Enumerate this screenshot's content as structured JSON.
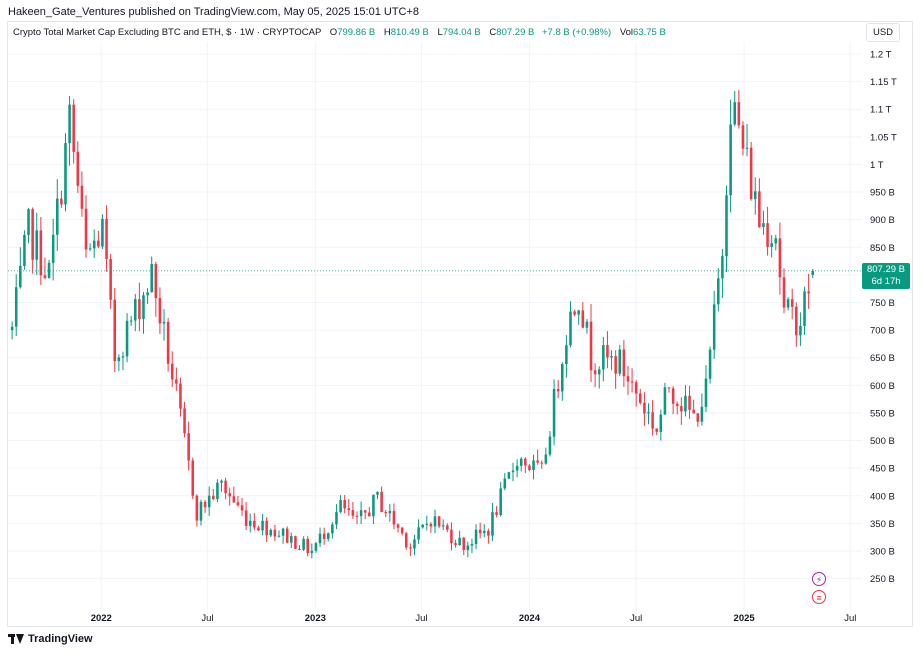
{
  "publisher_line": "Hakeen_Gate_Ventures published on TradingView.com, May 05, 2025 15:01 UTC+8",
  "legend": {
    "symbol": "Crypto Total Market Cap Excluding BTC and ETH, $ · 1W · CRYPTOCAP",
    "open_label": "O",
    "open": "799.86 B",
    "high_label": "H",
    "high": "810.49 B",
    "low_label": "L",
    "low": "794.04 B",
    "close_label": "C",
    "close": "807.29 B",
    "change": "+7.8 B (+0.98%)",
    "vol_label": "Vol",
    "vol": "63.75 B"
  },
  "currency": "USD",
  "price_badge": {
    "price": "807.29 B",
    "countdown": "6d 17h"
  },
  "brand": "TradingView",
  "icons": {
    "event_1": "lightning-icon",
    "event_2": "us-flag-icon"
  },
  "colors": {
    "up": "#089981",
    "down": "#f23645",
    "grid": "#f0f3fa",
    "price_line": "#089981"
  },
  "chart_data": {
    "type": "candlestick",
    "title": "Crypto Total Market Cap Excluding BTC and ETH, $ · 1W · CRYPTOCAP",
    "interval": "1W",
    "y_unit": "USD (B)",
    "ylim": [
      220,
      1200
    ],
    "y_ticks": [
      250,
      300,
      350,
      400,
      450,
      500,
      550,
      600,
      650,
      700,
      750,
      800,
      850,
      900,
      950,
      1000,
      1050,
      1100,
      1150,
      1200
    ],
    "y_tick_labels": [
      "250 B",
      "300 B",
      "350 B",
      "400 B",
      "450 B",
      "500 B",
      "550 B",
      "600 B",
      "650 B",
      "700 B",
      "750 B",
      "800 B",
      "850 B",
      "900 B",
      "950 B",
      "1 T",
      "1.05 T",
      "1.1 T",
      "1.15 T",
      "1.2 T"
    ],
    "x_range": [
      "2021-07-26",
      "2025-07-21"
    ],
    "x_ticks": [
      {
        "date": "2022-01-01",
        "label": "2022",
        "bold": true
      },
      {
        "date": "2022-07-01",
        "label": "Jul",
        "bold": false
      },
      {
        "date": "2023-01-01",
        "label": "2023",
        "bold": true
      },
      {
        "date": "2023-07-01",
        "label": "Jul",
        "bold": false
      },
      {
        "date": "2024-01-01",
        "label": "2024",
        "bold": true
      },
      {
        "date": "2024-07-01",
        "label": "Jul",
        "bold": false
      },
      {
        "date": "2025-01-01",
        "label": "2025",
        "bold": true
      },
      {
        "date": "2025-07-01",
        "label": "Jul",
        "bold": false
      }
    ],
    "current_price": 807.29,
    "anchors": [
      [
        "2021-08-02",
        700
      ],
      [
        "2021-08-30",
        880
      ],
      [
        "2021-10-04",
        800
      ],
      [
        "2021-11-08",
        1080
      ],
      [
        "2021-12-06",
        830
      ],
      [
        "2022-01-03",
        880
      ],
      [
        "2022-01-24",
        650
      ],
      [
        "2022-03-28",
        800
      ],
      [
        "2022-05-09",
        580
      ],
      [
        "2022-06-13",
        370
      ],
      [
        "2022-07-25",
        420
      ],
      [
        "2022-09-05",
        360
      ],
      [
        "2022-11-07",
        330
      ],
      [
        "2022-12-26",
        300
      ],
      [
        "2023-02-13",
        380
      ],
      [
        "2023-03-13",
        350
      ],
      [
        "2023-04-17",
        395
      ],
      [
        "2023-06-12",
        310
      ],
      [
        "2023-07-17",
        360
      ],
      [
        "2023-09-11",
        310
      ],
      [
        "2023-10-23",
        340
      ],
      [
        "2023-12-11",
        470
      ],
      [
        "2024-01-22",
        440
      ],
      [
        "2024-03-04",
        700
      ],
      [
        "2024-03-25",
        770
      ],
      [
        "2024-04-15",
        650
      ],
      [
        "2024-06-03",
        640
      ],
      [
        "2024-08-05",
        520
      ],
      [
        "2024-08-26",
        600
      ],
      [
        "2024-10-07",
        540
      ],
      [
        "2024-10-28",
        590
      ],
      [
        "2024-11-25",
        850
      ],
      [
        "2024-12-09",
        1120
      ],
      [
        "2025-01-06",
        1000
      ],
      [
        "2025-01-27",
        900
      ],
      [
        "2025-02-24",
        880
      ],
      [
        "2025-03-10",
        730
      ],
      [
        "2025-04-07",
        720
      ],
      [
        "2025-04-28",
        807.29
      ]
    ]
  }
}
